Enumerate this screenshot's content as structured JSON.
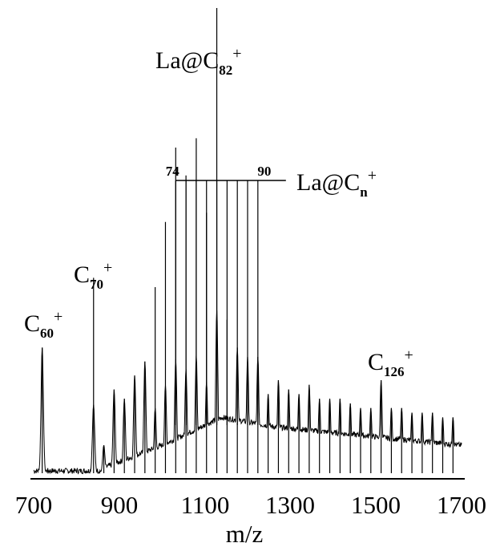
{
  "chart_data": {
    "type": "line",
    "title": "",
    "xlabel": "m/z",
    "ylabel": "",
    "xlim": [
      700,
      1700
    ],
    "x_ticks": [
      "700",
      "900",
      "1100",
      "1300",
      "1500",
      "1700"
    ],
    "grid": false,
    "legend": "none",
    "series": [
      {
        "peaks": [
          {
            "mz": 720,
            "intensity": 0.27
          },
          {
            "mz": 840,
            "intensity": 0.42
          },
          {
            "mz": 864,
            "intensity": 0.06
          },
          {
            "mz": 888,
            "intensity": 0.18
          },
          {
            "mz": 912,
            "intensity": 0.16
          },
          {
            "mz": 936,
            "intensity": 0.21
          },
          {
            "mz": 960,
            "intensity": 0.24
          },
          {
            "mz": 984,
            "intensity": 0.4
          },
          {
            "mz": 1008,
            "intensity": 0.54
          },
          {
            "mz": 1032,
            "intensity": 0.7
          },
          {
            "mz": 1056,
            "intensity": 0.64
          },
          {
            "mz": 1080,
            "intensity": 0.72
          },
          {
            "mz": 1104,
            "intensity": 0.56
          },
          {
            "mz": 1128,
            "intensity": 1.0
          },
          {
            "mz": 1152,
            "intensity": 0.33
          },
          {
            "mz": 1176,
            "intensity": 0.27
          },
          {
            "mz": 1200,
            "intensity": 0.25
          },
          {
            "mz": 1224,
            "intensity": 0.25
          },
          {
            "mz": 1248,
            "intensity": 0.17
          },
          {
            "mz": 1272,
            "intensity": 0.2
          },
          {
            "mz": 1296,
            "intensity": 0.18
          },
          {
            "mz": 1320,
            "intensity": 0.17
          },
          {
            "mz": 1344,
            "intensity": 0.19
          },
          {
            "mz": 1368,
            "intensity": 0.16
          },
          {
            "mz": 1392,
            "intensity": 0.16
          },
          {
            "mz": 1416,
            "intensity": 0.16
          },
          {
            "mz": 1440,
            "intensity": 0.15
          },
          {
            "mz": 1464,
            "intensity": 0.14
          },
          {
            "mz": 1488,
            "intensity": 0.14
          },
          {
            "mz": 1512,
            "intensity": 0.2
          },
          {
            "mz": 1536,
            "intensity": 0.14
          },
          {
            "mz": 1560,
            "intensity": 0.14
          },
          {
            "mz": 1584,
            "intensity": 0.13
          },
          {
            "mz": 1608,
            "intensity": 0.13
          },
          {
            "mz": 1632,
            "intensity": 0.13
          },
          {
            "mz": 1656,
            "intensity": 0.12
          },
          {
            "mz": 1680,
            "intensity": 0.12
          }
        ]
      }
    ],
    "annotations": [
      {
        "id": "main",
        "base": "La@C",
        "sub": "82",
        "sup": "+",
        "mz": 1128
      },
      {
        "id": "series",
        "base": "La@C",
        "sub": "n",
        "sup": "+"
      },
      {
        "id": "c60",
        "base": "C",
        "sub": "60",
        "sup": "+",
        "mz": 720
      },
      {
        "id": "c70",
        "base": "C",
        "sub": "70",
        "sup": "+",
        "mz": 840
      },
      {
        "id": "c126",
        "base": "C",
        "sub": "126",
        "sup": "+",
        "mz": 1512
      }
    ],
    "bracket": {
      "start_label": "74",
      "end_label": "90",
      "mz_start": 1032,
      "mz_end": 1224,
      "step": 24
    }
  }
}
